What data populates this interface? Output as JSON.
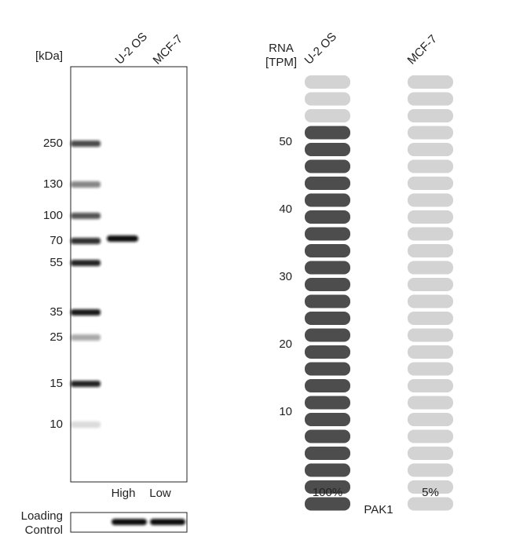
{
  "blot": {
    "unit_label": "[kDa]",
    "lanes": [
      "U-2 OS",
      "MCF-7"
    ],
    "markers": [
      "250",
      "130",
      "100",
      "70",
      "55",
      "35",
      "25",
      "15",
      "10"
    ],
    "levels": [
      "High",
      "Low"
    ],
    "loading_label": [
      "Loading",
      "Control"
    ]
  },
  "rna": {
    "axis_label": [
      "RNA",
      "[TPM]"
    ],
    "ticks": [
      "50",
      "40",
      "30",
      "20",
      "10"
    ],
    "total_pills": 26,
    "columns": [
      {
        "label": "U-2 OS",
        "percent": "100%",
        "filled": 23
      },
      {
        "label": "MCF-7",
        "percent": "5%",
        "filled": 0
      }
    ],
    "gene": "PAK1"
  }
}
